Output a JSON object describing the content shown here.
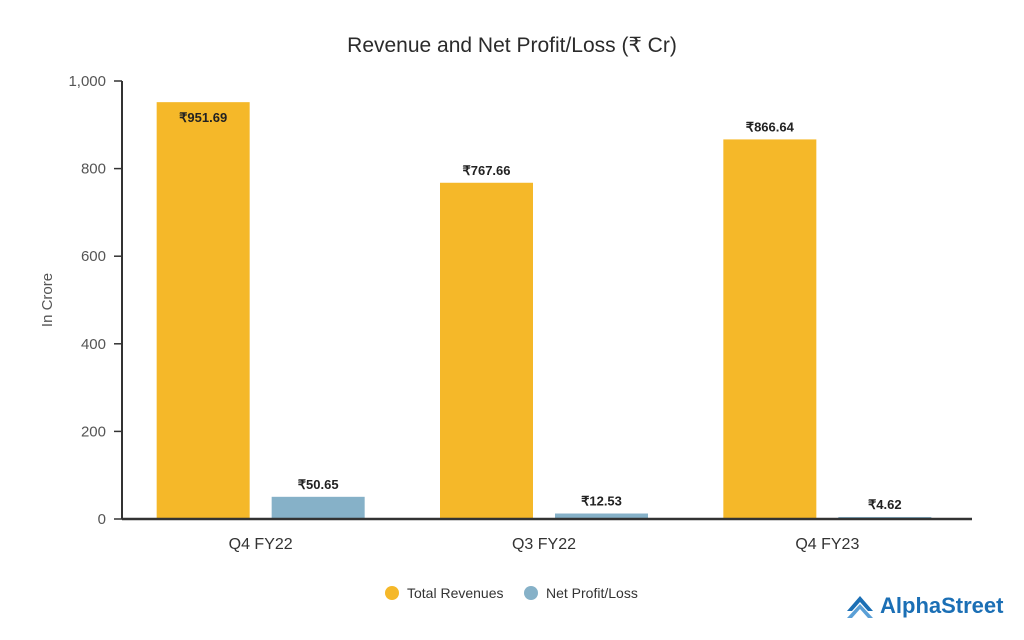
{
  "chart_data": {
    "type": "bar",
    "title": "Revenue and Net Profit/Loss (₹ Cr)",
    "xlabel": "",
    "ylabel": "In Crore",
    "ylim": [
      0,
      1000
    ],
    "yticks": [
      0,
      200,
      400,
      600,
      800,
      1000
    ],
    "ytick_labels": [
      "0",
      "200",
      "400",
      "600",
      "800",
      "1,000"
    ],
    "categories": [
      "Q4 FY22",
      "Q3 FY22",
      "Q4 FY23"
    ],
    "series": [
      {
        "name": "Total Revenues",
        "color": "#f5b829",
        "values": [
          951.69,
          767.66,
          866.64
        ],
        "labels": [
          "₹951.69",
          "₹767.66",
          "₹866.64"
        ]
      },
      {
        "name": "Net Profit/Loss",
        "color": "#86b1c8",
        "values": [
          50.65,
          12.53,
          4.62
        ],
        "labels": [
          "₹50.65",
          "₹12.53",
          "₹4.62"
        ]
      }
    ],
    "grid": false,
    "legend_position": "bottom-center"
  },
  "branding": {
    "logo_text": "AlphaStreet",
    "logo_color": "#1b6fb5"
  }
}
